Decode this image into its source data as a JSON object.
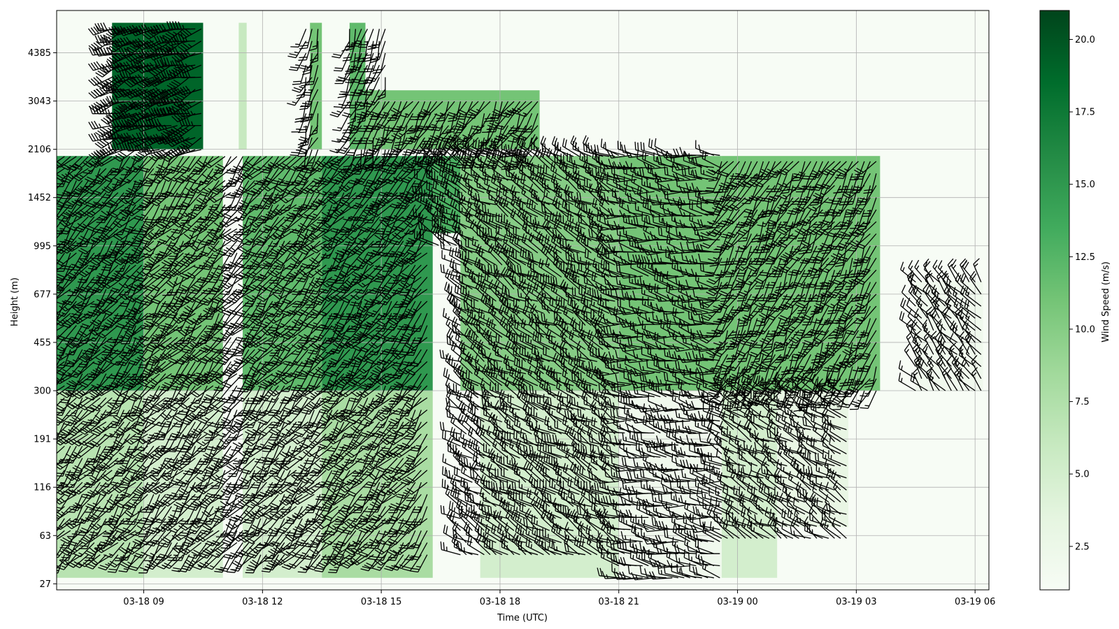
{
  "chart_data": {
    "type": "heatmap",
    "title": "",
    "xlabel": "Time (UTC)",
    "ylabel": "Height (m)",
    "x_tick_labels": [
      "03-18 09",
      "03-18 12",
      "03-18 15",
      "03-18 18",
      "03-18 21",
      "03-19 00",
      "03-19 03",
      "03-19 06"
    ],
    "x_ticks_hours": [
      9,
      12,
      15,
      18,
      21,
      24,
      27,
      30
    ],
    "x_range_hours": [
      6.8,
      30.35
    ],
    "y_tick_labels": [
      "27",
      "63",
      "116",
      "191",
      "300",
      "455",
      "677",
      "995",
      "1452",
      "2106",
      "3043",
      "4385"
    ],
    "y_levels": 48,
    "colorbar": {
      "label": "Wind Speed (m/s)",
      "ticks": [
        "2.5",
        "5.0",
        "7.5",
        "10.0",
        "12.5",
        "15.0",
        "17.5",
        "20.0"
      ],
      "range": [
        1.0,
        21.0
      ],
      "colormap": "Greens",
      "colors": [
        "#f7fcf5",
        "#e5f5e0",
        "#c7e9c0",
        "#a1d99b",
        "#74c476",
        "#41ab5d",
        "#238b45",
        "#006d2c",
        "#00441b"
      ]
    },
    "grid": true,
    "overlay": "wind barbs",
    "speed_regions": [
      {
        "t0": 6.8,
        "t1": 9.0,
        "h0": 300,
        "h1": 2000,
        "v": 15
      },
      {
        "t0": 6.8,
        "t1": 9.0,
        "h0": 30,
        "h1": 300,
        "v": 7
      },
      {
        "t0": 9.0,
        "t1": 11.0,
        "h0": 300,
        "h1": 2000,
        "v": 11
      },
      {
        "t0": 9.0,
        "t1": 11.0,
        "h0": 30,
        "h1": 300,
        "v": 5
      },
      {
        "t0": 8.2,
        "t1": 10.5,
        "h0": 2100,
        "h1": 5500,
        "v": 19
      },
      {
        "t0": 11.4,
        "t1": 11.6,
        "h0": 2100,
        "h1": 5500,
        "v": 6
      },
      {
        "t0": 11.5,
        "t1": 13.5,
        "h0": 300,
        "h1": 2000,
        "v": 12
      },
      {
        "t0": 11.5,
        "t1": 13.5,
        "h0": 30,
        "h1": 300,
        "v": 5
      },
      {
        "t0": 13.5,
        "t1": 16.3,
        "h0": 300,
        "h1": 2000,
        "v": 15
      },
      {
        "t0": 13.5,
        "t1": 16.3,
        "h0": 30,
        "h1": 300,
        "v": 8
      },
      {
        "t0": 13.2,
        "t1": 13.5,
        "h0": 2100,
        "h1": 5500,
        "v": 11
      },
      {
        "t0": 14.2,
        "t1": 14.6,
        "h0": 2100,
        "h1": 5500,
        "v": 12
      },
      {
        "t0": 14.6,
        "t1": 19.0,
        "h0": 2100,
        "h1": 3300,
        "v": 11
      },
      {
        "t0": 16.3,
        "t1": 17.0,
        "h0": 1100,
        "h1": 2000,
        "v": 13
      },
      {
        "t0": 17.0,
        "t1": 21.0,
        "h0": 300,
        "h1": 2000,
        "v": 10
      },
      {
        "t0": 17.5,
        "t1": 21.0,
        "h0": 30,
        "h1": 300,
        "v": 5
      },
      {
        "t0": 21.0,
        "t1": 23.6,
        "h0": 300,
        "h1": 2000,
        "v": 11
      },
      {
        "t0": 21.0,
        "t1": 23.6,
        "h0": 30,
        "h1": 300,
        "v": 2
      },
      {
        "t0": 23.6,
        "t1": 27.6,
        "h0": 300,
        "h1": 2000,
        "v": 11
      },
      {
        "t0": 23.6,
        "t1": 25.0,
        "h0": 30,
        "h1": 300,
        "v": 5
      },
      {
        "t0": 25.0,
        "t1": 26.8,
        "h0": 70,
        "h1": 300,
        "v": 3
      },
      {
        "t0": 28.5,
        "t1": 30.2,
        "h0": 300,
        "h1": 750,
        "v": 2
      }
    ],
    "barb_regions": [
      {
        "t0": 7.0,
        "t1": 16.2,
        "h0": 45,
        "h1": 2100,
        "dir": 220,
        "spd": 20
      },
      {
        "t0": 8.2,
        "t1": 10.5,
        "h0": 2100,
        "h1": 5300,
        "dir": 250,
        "spd": 40
      },
      {
        "t0": 13.1,
        "t1": 13.5,
        "h0": 2100,
        "h1": 5500,
        "dir": 200,
        "spd": 20
      },
      {
        "t0": 14.2,
        "t1": 15.2,
        "h0": 2100,
        "h1": 5500,
        "dir": 200,
        "spd": 20
      },
      {
        "t0": 15.2,
        "t1": 19.0,
        "h0": 2100,
        "h1": 3300,
        "dir": 210,
        "spd": 20
      },
      {
        "t0": 16.3,
        "t1": 17.0,
        "h0": 1000,
        "h1": 2100,
        "dir": 300,
        "spd": 25
      },
      {
        "t0": 17.0,
        "t1": 21.0,
        "h0": 45,
        "h1": 2100,
        "dir": 300,
        "spd": 20
      },
      {
        "t0": 21.0,
        "t1": 23.6,
        "h0": 30,
        "h1": 2100,
        "dir": 280,
        "spd": 15
      },
      {
        "t0": 23.6,
        "t1": 27.6,
        "h0": 300,
        "h1": 2100,
        "dir": 210,
        "spd": 20
      },
      {
        "t0": 23.6,
        "t1": 26.8,
        "h0": 60,
        "h1": 300,
        "dir": 300,
        "spd": 15
      },
      {
        "t0": 28.5,
        "t1": 30.2,
        "h0": 300,
        "h1": 750,
        "dir": 320,
        "spd": 15
      }
    ]
  }
}
